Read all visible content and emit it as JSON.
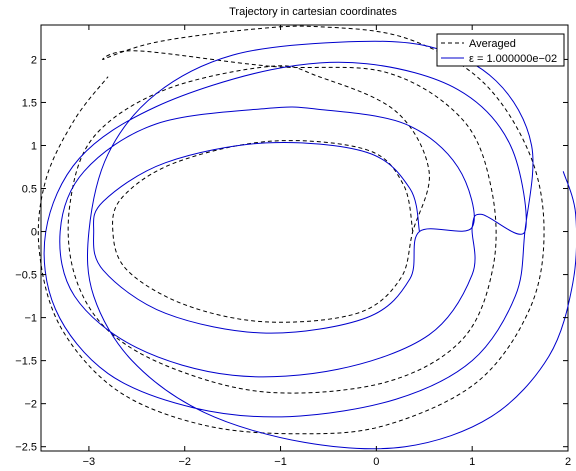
{
  "chart_data": {
    "type": "line",
    "title": "Trajectory in cartesian coordinates",
    "xlabel": "",
    "ylabel": "",
    "xlim": [
      -3.5,
      2
    ],
    "ylim": [
      -2.55,
      2.4
    ],
    "grid": false,
    "legend_position": "top-right",
    "x_ticks": [
      -3,
      -2,
      -1,
      0,
      1,
      2
    ],
    "y_ticks": [
      2,
      1.5,
      1,
      0.5,
      0,
      -0.5,
      -1,
      -1.5,
      -2,
      -2.5
    ],
    "x_tick_labels": [
      "−3",
      "−2",
      "−1",
      "0",
      "1",
      "2"
    ],
    "y_tick_labels": [
      "2",
      "1.5",
      "1",
      "0.5",
      "0",
      "−0.5",
      "−1",
      "−1.5",
      "−2",
      "−2.5"
    ],
    "series": [
      {
        "name": "Averaged",
        "color": "#000000",
        "style": "dashed",
        "points": [
          [
            0.38,
            0.0
          ],
          [
            0.28,
            0.55
          ],
          [
            -0.1,
            0.95
          ],
          [
            -1.1,
            1.05
          ],
          [
            -2.1,
            0.8
          ],
          [
            -2.65,
            0.4
          ],
          [
            -2.75,
            0.0
          ],
          [
            -2.6,
            -0.45
          ],
          [
            -2.0,
            -0.85
          ],
          [
            -1.15,
            -1.05
          ],
          [
            -0.2,
            -0.95
          ],
          [
            0.25,
            -0.55
          ],
          [
            0.38,
            0.0
          ],
          [
            0.55,
            0.7
          ],
          [
            0.2,
            1.4
          ],
          [
            -0.6,
            1.8
          ],
          [
            -1.1,
            1.92
          ],
          [
            -2.2,
            1.65
          ],
          [
            -2.95,
            1.1
          ],
          [
            -3.2,
            0.3
          ],
          [
            -3.15,
            -0.5
          ],
          [
            -2.8,
            -1.15
          ],
          [
            -2.1,
            -1.6
          ],
          [
            -1.1,
            -1.87
          ],
          [
            0.1,
            -1.75
          ],
          [
            0.9,
            -1.25
          ],
          [
            1.22,
            -0.4
          ],
          [
            1.2,
            0.5
          ],
          [
            0.9,
            1.3
          ],
          [
            0.1,
            1.85
          ],
          [
            -1.1,
            1.92
          ],
          [
            -2.5,
            2.1
          ],
          [
            -2.85,
            2.0
          ],
          [
            -2.3,
            2.2
          ],
          [
            -1.3,
            2.35
          ],
          [
            -0.6,
            2.38
          ],
          [
            0.3,
            2.25
          ],
          [
            1.1,
            1.75
          ],
          [
            1.6,
            0.9
          ],
          [
            1.75,
            0.0
          ],
          [
            1.6,
            -0.9
          ],
          [
            1.05,
            -1.75
          ],
          [
            0.1,
            -2.25
          ],
          [
            -0.8,
            -2.35
          ],
          [
            -1.8,
            -2.25
          ],
          [
            -2.7,
            -1.85
          ],
          [
            -3.3,
            -1.1
          ],
          [
            -3.52,
            -0.2
          ],
          [
            -3.45,
            0.6
          ],
          [
            -3.15,
            1.3
          ],
          [
            -2.8,
            1.8
          ]
        ]
      },
      {
        "name": "ε = 1.000000e−02",
        "color": "#0000cc",
        "style": "solid",
        "points": [
          [
            0.45,
            0.0
          ],
          [
            0.35,
            0.5
          ],
          [
            -0.1,
            0.92
          ],
          [
            -1.15,
            1.03
          ],
          [
            -2.2,
            0.8
          ],
          [
            -2.85,
            0.35
          ],
          [
            -2.95,
            0.0
          ],
          [
            -2.85,
            -0.45
          ],
          [
            -2.2,
            -0.95
          ],
          [
            -1.15,
            -1.18
          ],
          [
            -0.1,
            -1.0
          ],
          [
            0.35,
            -0.55
          ],
          [
            0.45,
            0.0
          ],
          [
            1.0,
            0.05
          ],
          [
            0.85,
            0.75
          ],
          [
            0.3,
            1.25
          ],
          [
            -0.6,
            1.42
          ],
          [
            -1.15,
            1.43
          ],
          [
            -2.3,
            1.25
          ],
          [
            -3.05,
            0.7
          ],
          [
            -3.3,
            0.0
          ],
          [
            -3.15,
            -0.75
          ],
          [
            -2.5,
            -1.35
          ],
          [
            -1.5,
            -1.67
          ],
          [
            -0.4,
            -1.6
          ],
          [
            0.55,
            -1.2
          ],
          [
            1.0,
            -0.5
          ],
          [
            1.0,
            0.05
          ],
          [
            1.1,
            0.2
          ],
          [
            1.55,
            0.0
          ],
          [
            1.4,
            1.0
          ],
          [
            0.85,
            1.65
          ],
          [
            -0.1,
            1.95
          ],
          [
            -1.1,
            1.88
          ],
          [
            -2.3,
            1.45
          ],
          [
            -3.1,
            0.85
          ],
          [
            -3.45,
            0.0
          ],
          [
            -3.35,
            -0.9
          ],
          [
            -2.8,
            -1.65
          ],
          [
            -1.9,
            -2.05
          ],
          [
            -0.9,
            -2.15
          ],
          [
            0.2,
            -1.95
          ],
          [
            1.0,
            -1.5
          ],
          [
            1.45,
            -0.75
          ],
          [
            1.55,
            0.0
          ],
          [
            1.62,
            1.0
          ],
          [
            1.25,
            1.75
          ],
          [
            0.55,
            2.15
          ],
          [
            -0.4,
            2.2
          ],
          [
            -1.5,
            2.05
          ],
          [
            -2.3,
            1.6
          ],
          [
            -2.8,
            0.9
          ],
          [
            -3.0,
            0.0
          ],
          [
            -2.95,
            -0.75
          ],
          [
            -2.55,
            -1.5
          ],
          [
            -1.8,
            -2.1
          ],
          [
            -0.75,
            -2.45
          ],
          [
            0.3,
            -2.5
          ],
          [
            1.2,
            -2.15
          ],
          [
            1.8,
            -1.45
          ],
          [
            2.05,
            -0.6
          ],
          [
            2.08,
            0.2
          ],
          [
            1.95,
            0.7
          ]
        ]
      }
    ]
  }
}
